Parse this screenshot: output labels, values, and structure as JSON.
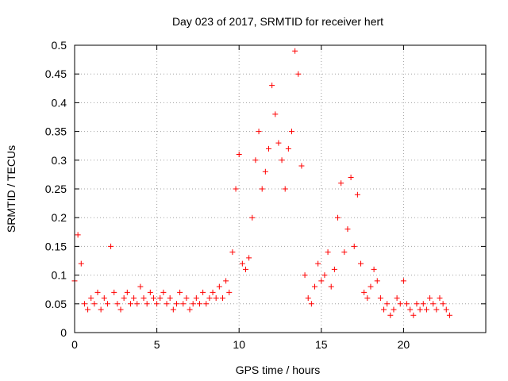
{
  "chart_data": {
    "type": "scatter",
    "title": "Day 023 of 2017, SRMTID for receiver hert",
    "xlabel": "GPS time / hours",
    "ylabel": "SRMTID / TECUs",
    "xlim": [
      0,
      25
    ],
    "ylim": [
      0,
      0.5
    ],
    "grid": true,
    "marker": "+",
    "color": "#ff0000",
    "x_ticks": [
      0,
      5,
      10,
      15,
      20
    ],
    "x_tick_labels": [
      "0",
      "5",
      "10",
      "15",
      "20"
    ],
    "y_ticks": [
      0,
      0.05,
      0.1,
      0.15,
      0.2,
      0.25,
      0.3,
      0.35,
      0.4,
      0.45,
      0.5
    ],
    "y_tick_labels": [
      "0",
      "0.05",
      "0.1",
      "0.15",
      "0.2",
      "0.25",
      "0.3",
      "0.35",
      "0.4",
      "0.45",
      "0.5"
    ],
    "series": [
      {
        "name": "SRMTID",
        "x": [
          0.0,
          0.2,
          0.4,
          0.6,
          0.8,
          1.0,
          1.2,
          1.4,
          1.6,
          1.8,
          2.0,
          2.2,
          2.4,
          2.6,
          2.8,
          3.0,
          3.2,
          3.4,
          3.6,
          3.8,
          4.0,
          4.2,
          4.4,
          4.6,
          4.8,
          5.0,
          5.2,
          5.4,
          5.6,
          5.8,
          6.0,
          6.2,
          6.4,
          6.6,
          6.8,
          7.0,
          7.2,
          7.4,
          7.6,
          7.8,
          8.0,
          8.2,
          8.4,
          8.6,
          8.8,
          9.0,
          9.2,
          9.4,
          9.6,
          9.8,
          10.0,
          10.2,
          10.4,
          10.6,
          10.8,
          11.0,
          11.2,
          11.4,
          11.6,
          11.8,
          12.0,
          12.2,
          12.4,
          12.6,
          12.8,
          13.0,
          13.2,
          13.4,
          13.6,
          13.8,
          14.0,
          14.2,
          14.4,
          14.6,
          14.8,
          15.0,
          15.2,
          15.4,
          15.6,
          15.8,
          16.0,
          16.2,
          16.4,
          16.6,
          16.8,
          17.0,
          17.2,
          17.4,
          17.6,
          17.8,
          18.0,
          18.2,
          18.4,
          18.6,
          18.8,
          19.0,
          19.2,
          19.4,
          19.6,
          19.8,
          20.0,
          20.2,
          20.4,
          20.6,
          20.8,
          21.0,
          21.2,
          21.4,
          21.6,
          21.8,
          22.0,
          22.2,
          22.4,
          22.6,
          22.8
        ],
        "y": [
          0.09,
          0.17,
          0.12,
          0.05,
          0.04,
          0.06,
          0.05,
          0.07,
          0.04,
          0.06,
          0.05,
          0.15,
          0.07,
          0.05,
          0.04,
          0.06,
          0.07,
          0.05,
          0.06,
          0.05,
          0.08,
          0.06,
          0.05,
          0.07,
          0.06,
          0.05,
          0.06,
          0.07,
          0.05,
          0.06,
          0.04,
          0.05,
          0.07,
          0.05,
          0.06,
          0.04,
          0.05,
          0.06,
          0.05,
          0.07,
          0.05,
          0.06,
          0.07,
          0.06,
          0.08,
          0.06,
          0.09,
          0.07,
          0.14,
          0.25,
          0.31,
          0.12,
          0.11,
          0.13,
          0.2,
          0.3,
          0.35,
          0.25,
          0.28,
          0.32,
          0.43,
          0.38,
          0.33,
          0.3,
          0.25,
          0.32,
          0.35,
          0.49,
          0.45,
          0.29,
          0.1,
          0.06,
          0.05,
          0.08,
          0.12,
          0.09,
          0.1,
          0.14,
          0.08,
          0.11,
          0.2,
          0.26,
          0.14,
          0.18,
          0.27,
          0.15,
          0.24,
          0.12,
          0.07,
          0.06,
          0.08,
          0.11,
          0.09,
          0.06,
          0.04,
          0.05,
          0.03,
          0.04,
          0.06,
          0.05,
          0.09,
          0.05,
          0.04,
          0.03,
          0.05,
          0.04,
          0.05,
          0.04,
          0.06,
          0.05,
          0.04,
          0.06,
          0.05,
          0.04,
          0.03
        ]
      }
    ]
  }
}
